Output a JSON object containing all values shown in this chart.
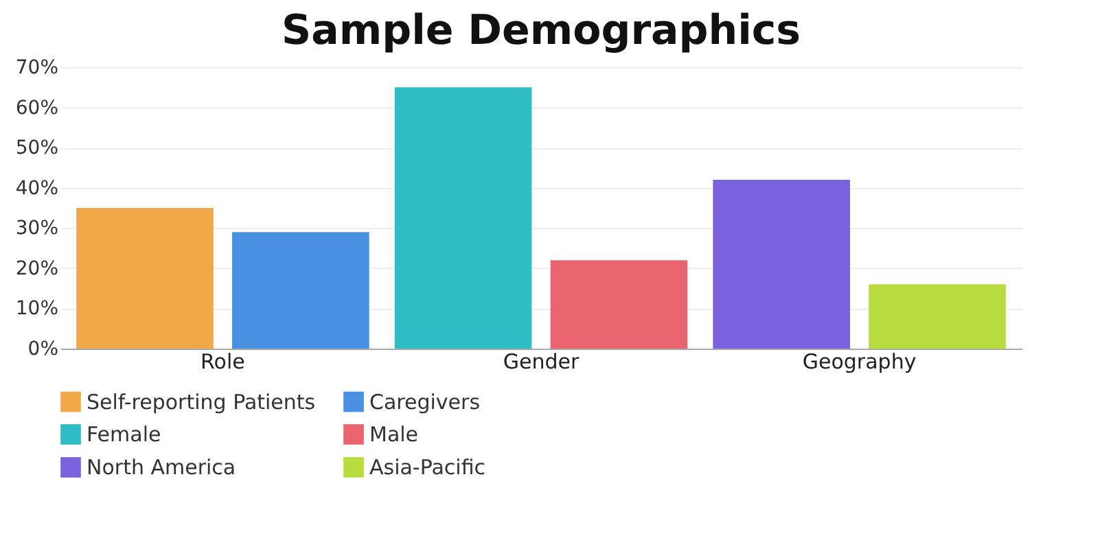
{
  "chart_data": {
    "type": "bar",
    "title": "Sample Demographics",
    "categories": [
      "Role",
      "Gender",
      "Geography"
    ],
    "series": [
      {
        "name": "Self-reporting Patients",
        "color": "#f0a848",
        "values": [
          35,
          null,
          null
        ]
      },
      {
        "name": "Caregivers",
        "color": "#4a90e0",
        "values": [
          29,
          null,
          null
        ]
      },
      {
        "name": "Female",
        "color": "#30bcc4",
        "values": [
          null,
          65,
          null
        ]
      },
      {
        "name": "Male",
        "color": "#ea6470",
        "values": [
          null,
          22,
          null
        ]
      },
      {
        "name": "North America",
        "color": "#7a62dc",
        "values": [
          null,
          null,
          42
        ]
      },
      {
        "name": "Asia-Pacific",
        "color": "#b8dc40",
        "values": [
          null,
          null,
          16
        ]
      }
    ],
    "ylim": [
      0,
      70
    ],
    "yticks": [
      {
        "value": 0,
        "label": "0%"
      },
      {
        "value": 10,
        "label": "10%"
      },
      {
        "value": 20,
        "label": "20%"
      },
      {
        "value": 30,
        "label": "30%"
      },
      {
        "value": 40,
        "label": "40%"
      },
      {
        "value": 50,
        "label": "50%"
      },
      {
        "value": 60,
        "label": "60%"
      },
      {
        "value": 70,
        "label": "70%"
      }
    ],
    "grid": "y",
    "legend": "bottom"
  }
}
